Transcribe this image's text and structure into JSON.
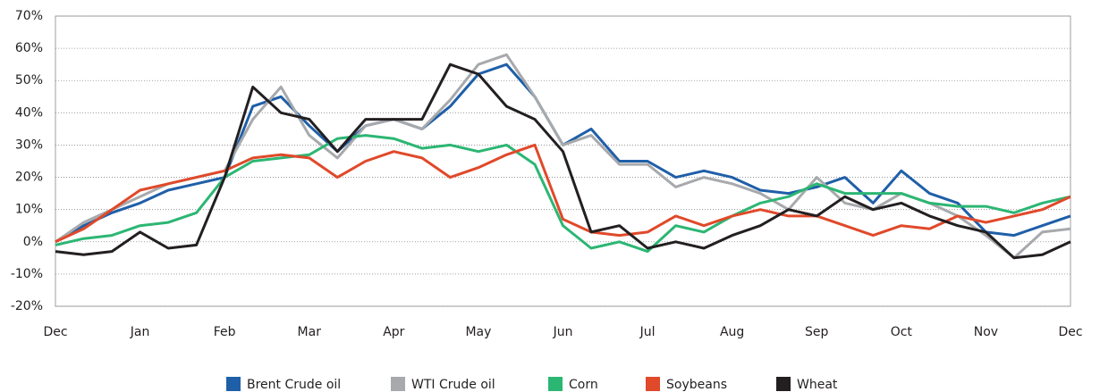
{
  "chart_data": {
    "type": "line",
    "categories": [
      "Dec",
      null,
      null,
      "Jan",
      null,
      null,
      "Feb",
      null,
      null,
      "Mar",
      null,
      null,
      "Apr",
      null,
      null,
      "May",
      null,
      null,
      "Jun",
      null,
      null,
      "Jul",
      null,
      null,
      "Aug",
      null,
      null,
      "Sep",
      null,
      null,
      "Oct",
      null,
      null,
      "Nov",
      null,
      null,
      "Dec"
    ],
    "series": [
      {
        "name": "Brent Crude oil",
        "color": "#1f5fa8",
        "values": [
          0,
          5,
          9,
          12,
          16,
          18,
          20,
          42,
          45,
          36,
          28,
          36,
          38,
          35,
          42,
          52,
          55,
          45,
          30,
          35,
          25,
          25,
          20,
          22,
          20,
          16,
          15,
          17,
          20,
          12,
          22,
          15,
          12,
          3,
          2,
          5,
          8
        ]
      },
      {
        "name": "WTI Crude oil",
        "color": "#a7a9ac",
        "values": [
          0,
          6,
          10,
          14,
          18,
          20,
          22,
          38,
          48,
          33,
          26,
          36,
          38,
          35,
          44,
          55,
          58,
          45,
          30,
          33,
          24,
          24,
          17,
          20,
          18,
          15,
          10,
          20,
          12,
          10,
          15,
          12,
          8,
          2,
          -5,
          3,
          4
        ]
      },
      {
        "name": "Corn",
        "color": "#2cb673",
        "values": [
          -1,
          1,
          2,
          5,
          6,
          9,
          20,
          25,
          26,
          27,
          32,
          33,
          32,
          29,
          30,
          28,
          30,
          24,
          5,
          -2,
          0,
          -3,
          5,
          3,
          8,
          12,
          14,
          18,
          15,
          15,
          15,
          12,
          11,
          11,
          9,
          12,
          14
        ]
      },
      {
        "name": "Soybeans",
        "color": "#e0492a",
        "values": [
          0,
          4,
          10,
          16,
          18,
          20,
          22,
          26,
          27,
          26,
          20,
          25,
          28,
          26,
          20,
          23,
          27,
          30,
          7,
          3,
          2,
          3,
          8,
          5,
          8,
          10,
          8,
          8,
          5,
          2,
          5,
          4,
          8,
          6,
          8,
          10,
          14
        ]
      },
      {
        "name": "Wheat",
        "color": "#231f20",
        "values": [
          -3,
          -4,
          -3,
          3,
          -2,
          -1,
          20,
          48,
          40,
          38,
          28,
          38,
          38,
          38,
          55,
          52,
          42,
          38,
          28,
          3,
          5,
          -2,
          0,
          -2,
          2,
          5,
          10,
          8,
          14,
          10,
          12,
          8,
          5,
          3,
          -5,
          -4,
          0
        ]
      }
    ],
    "ylim": [
      -20,
      70
    ],
    "yticks": [
      {
        "value": -20,
        "label": "-20%"
      },
      {
        "value": -10,
        "label": "-10%"
      },
      {
        "value": 0,
        "label": "0%"
      },
      {
        "value": 10,
        "label": "10%"
      },
      {
        "value": 20,
        "label": "20%"
      },
      {
        "value": 30,
        "label": "30%"
      },
      {
        "value": 40,
        "label": "40%"
      },
      {
        "value": 50,
        "label": "50%"
      },
      {
        "value": 60,
        "label": "60%"
      },
      {
        "value": 70,
        "label": "70%"
      }
    ],
    "grid": true
  }
}
